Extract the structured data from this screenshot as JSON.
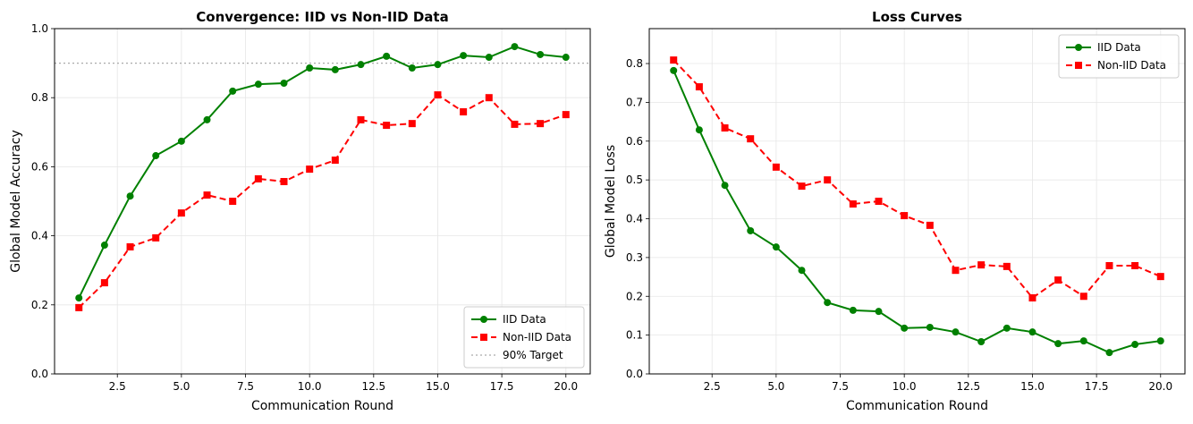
{
  "chart_data": [
    {
      "type": "line",
      "title": "Convergence: IID vs Non-IID Data",
      "xlabel": "Communication Round",
      "ylabel": "Global Model Accuracy",
      "xlim": [
        0.05,
        20.95
      ],
      "ylim": [
        0,
        1.0
      ],
      "xticks": [
        2.5,
        5.0,
        7.5,
        10.0,
        12.5,
        15.0,
        17.5,
        20.0
      ],
      "yticks": [
        0.0,
        0.2,
        0.4,
        0.6,
        0.8,
        1.0
      ],
      "grid": true,
      "legend_position": "lower-right",
      "x": [
        1,
        2,
        3,
        4,
        5,
        6,
        7,
        8,
        9,
        10,
        11,
        12,
        13,
        14,
        15,
        16,
        17,
        18,
        19,
        20
      ],
      "series": [
        {
          "name": "IID Data",
          "color": "#008000",
          "style": "solid",
          "marker": "circle",
          "values": [
            0.22,
            0.373,
            0.515,
            0.632,
            0.674,
            0.736,
            0.819,
            0.839,
            0.842,
            0.886,
            0.881,
            0.896,
            0.92,
            0.886,
            0.896,
            0.922,
            0.917,
            0.948,
            0.925,
            0.917
          ]
        },
        {
          "name": "Non-IID Data",
          "color": "#ff0000",
          "style": "dashed",
          "marker": "square",
          "values": [
            0.192,
            0.264,
            0.368,
            0.394,
            0.466,
            0.518,
            0.5,
            0.565,
            0.557,
            0.593,
            0.619,
            0.736,
            0.72,
            0.725,
            0.808,
            0.759,
            0.8,
            0.723,
            0.725,
            0.751
          ]
        }
      ],
      "hlines": [
        {
          "name": "90% Target",
          "y": 0.9,
          "color": "#aaaaaa",
          "style": "dotted"
        }
      ]
    },
    {
      "type": "line",
      "title": "Loss Curves",
      "xlabel": "Communication Round",
      "ylabel": "Global Model Loss",
      "xlim": [
        0.05,
        20.95
      ],
      "ylim": [
        0,
        0.89
      ],
      "xticks": [
        2.5,
        5.0,
        7.5,
        10.0,
        12.5,
        15.0,
        17.5,
        20.0
      ],
      "yticks": [
        0.0,
        0.1,
        0.2,
        0.3,
        0.4,
        0.5,
        0.6,
        0.7,
        0.8
      ],
      "grid": true,
      "legend_position": "upper-right",
      "x": [
        1,
        2,
        3,
        4,
        5,
        6,
        7,
        8,
        9,
        10,
        11,
        12,
        13,
        14,
        15,
        16,
        17,
        18,
        19,
        20
      ],
      "series": [
        {
          "name": "IID Data",
          "color": "#008000",
          "style": "solid",
          "marker": "circle",
          "values": [
            0.782,
            0.629,
            0.486,
            0.369,
            0.327,
            0.267,
            0.184,
            0.164,
            0.161,
            0.118,
            0.12,
            0.108,
            0.083,
            0.118,
            0.108,
            0.078,
            0.085,
            0.055,
            0.076,
            0.085
          ]
        },
        {
          "name": "Non-IID Data",
          "color": "#ff0000",
          "style": "dashed",
          "marker": "square",
          "values": [
            0.809,
            0.74,
            0.634,
            0.606,
            0.533,
            0.484,
            0.5,
            0.438,
            0.445,
            0.408,
            0.383,
            0.267,
            0.281,
            0.277,
            0.196,
            0.242,
            0.2,
            0.279,
            0.279,
            0.251
          ]
        }
      ],
      "hlines": []
    }
  ]
}
